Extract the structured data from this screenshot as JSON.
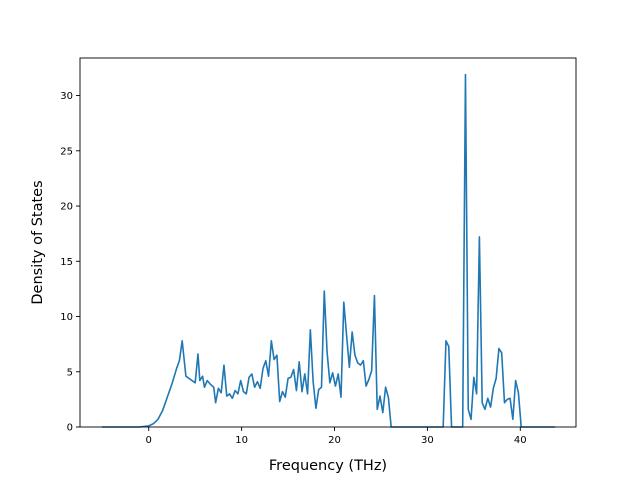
{
  "chart_data": {
    "type": "line",
    "title": "",
    "xlabel": "Frequency (THz)",
    "ylabel": "Density of States",
    "xlim": [
      -7.4,
      46.0
    ],
    "ylim": [
      0,
      33.4
    ],
    "x_ticks": [
      0,
      10,
      20,
      30,
      40
    ],
    "y_ticks": [
      0,
      5,
      10,
      15,
      20,
      25,
      30
    ],
    "x_tick_labels": [
      "0",
      "10",
      "20",
      "30",
      "40"
    ],
    "y_tick_labels": [
      "0",
      "5",
      "10",
      "15",
      "20",
      "25",
      "30"
    ],
    "grid": false,
    "legend": "none",
    "line_color": "#1f77b4",
    "series": [
      {
        "x": [
          -5,
          -1,
          0,
          0.5,
          1,
          1.5,
          2,
          2.5,
          3,
          3.3,
          3.6,
          4,
          4.5,
          5,
          5.3,
          5.5,
          5.8,
          6,
          6.3,
          6.6,
          7,
          7.2,
          7.5,
          7.8,
          8.1,
          8.4,
          8.7,
          9,
          9.3,
          9.6,
          9.9,
          10.2,
          10.5,
          10.8,
          11.1,
          11.4,
          11.7,
          12,
          12.3,
          12.6,
          12.9,
          13.2,
          13.5,
          13.8,
          14.1,
          14.4,
          14.7,
          15,
          15.3,
          15.6,
          15.9,
          16.2,
          16.5,
          16.8,
          17.1,
          17.4,
          17.7,
          18,
          18.3,
          18.6,
          18.9,
          19.2,
          19.5,
          19.8,
          20.1,
          20.4,
          20.7,
          21,
          21.3,
          21.6,
          21.9,
          22.2,
          22.5,
          22.8,
          23.1,
          23.4,
          23.7,
          24,
          24.3,
          24.6,
          24.9,
          25.2,
          25.5,
          25.8,
          26.1,
          31.4,
          31.7,
          32,
          32.3,
          32.6,
          33,
          33.4,
          33.8,
          34.1,
          34.4,
          34.7,
          35,
          35.3,
          35.6,
          35.9,
          36.2,
          36.5,
          36.8,
          37.1,
          37.4,
          37.7,
          38,
          38.3,
          38.6,
          38.9,
          39.2,
          39.5,
          39.8,
          40.1,
          40.4,
          43.7
        ],
        "y": [
          0,
          0,
          0.1,
          0.3,
          0.7,
          1.5,
          2.7,
          3.9,
          5.3,
          6.0,
          7.8,
          4.6,
          4.3,
          4.0,
          6.6,
          4.2,
          4.6,
          3.6,
          4.2,
          3.9,
          3.6,
          2.2,
          3.5,
          3.1,
          5.6,
          2.8,
          3.0,
          2.6,
          3.3,
          3.0,
          4.2,
          3.2,
          3.0,
          4.5,
          4.8,
          3.6,
          4.1,
          3.5,
          5.3,
          6.0,
          4.6,
          7.8,
          6.1,
          6.5,
          2.3,
          3.2,
          2.7,
          4.4,
          4.5,
          5.2,
          3.3,
          5.9,
          3.2,
          4.8,
          3.0,
          8.8,
          4.1,
          1.7,
          3.4,
          3.6,
          12.3,
          6.8,
          4.0,
          4.9,
          3.7,
          4.8,
          2.7,
          11.3,
          8.3,
          5.4,
          8.6,
          6.5,
          5.8,
          5.6,
          6.0,
          3.7,
          4.3,
          5.1,
          11.9,
          1.6,
          2.8,
          1.3,
          3.6,
          2.7,
          0,
          0,
          0,
          7.8,
          7.3,
          0,
          0,
          0,
          0,
          31.9,
          1.6,
          0.7,
          4.5,
          3.0,
          17.2,
          2.2,
          1.6,
          2.6,
          1.8,
          3.5,
          4.4,
          7.1,
          6.7,
          2.2,
          2.5,
          2.6,
          0.7,
          4.2,
          3.1,
          0,
          0,
          0
        ]
      }
    ]
  }
}
